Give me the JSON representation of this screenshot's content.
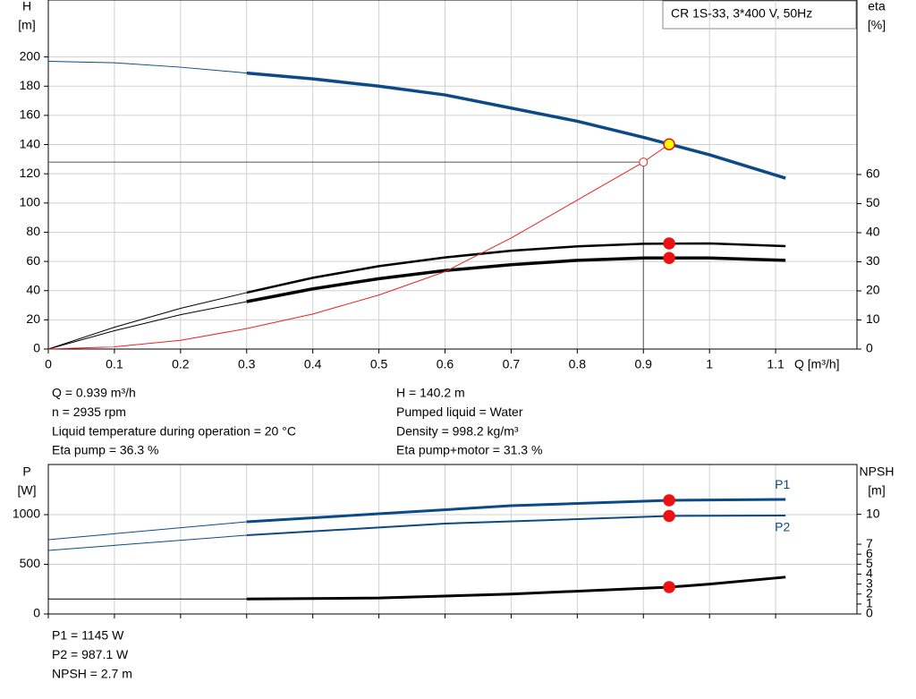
{
  "chart_data": [
    {
      "type": "line",
      "title": "CR 1S-33, 3*400 V, 50Hz",
      "ylabel": "H",
      "yunit": "[m]",
      "y2label": "eta",
      "y2unit": "[%]",
      "xlabel": "Q [m³/h]",
      "xlim": [
        0,
        1.223
      ],
      "xticks": [
        0,
        0.1,
        0.2,
        0.3,
        0.4,
        0.5,
        0.6,
        0.7,
        0.8,
        0.9,
        1.0,
        1.1
      ],
      "ylim": [
        0,
        239
      ],
      "yticks": [
        0,
        20,
        40,
        60,
        80,
        100,
        120,
        140,
        160,
        180,
        200
      ],
      "y2lim": [
        0,
        120
      ],
      "y2ticks": [
        0,
        10,
        20,
        30,
        40,
        50,
        60
      ],
      "grid": true,
      "series": [
        {
          "color": "#0b4a86",
          "width": 1,
          "x": [
            0,
            0.1,
            0.2,
            0.3
          ],
          "values": [
            197,
            196,
            193,
            189
          ]
        },
        {
          "color": "#0b4a86",
          "width": 3.5,
          "x": [
            0.3,
            0.4,
            0.5,
            0.6,
            0.7,
            0.8,
            0.9,
            1.0,
            1.115
          ],
          "values": [
            189,
            185,
            180,
            174,
            165,
            156,
            145,
            133,
            117
          ]
        },
        {
          "color": "#000000",
          "width": 1,
          "axis": "y2",
          "x": [
            0,
            0.1,
            0.2,
            0.3
          ],
          "values": [
            0,
            7.5,
            14,
            19.4
          ]
        },
        {
          "color": "#000000",
          "width": 2.5,
          "axis": "y2",
          "x": [
            0.3,
            0.4,
            0.5,
            0.6,
            0.7,
            0.8,
            0.9,
            1.0,
            1.115
          ],
          "values": [
            19.4,
            24.5,
            28.5,
            31.5,
            33.8,
            35.3,
            36.2,
            36.3,
            35.4
          ]
        },
        {
          "color": "#000000",
          "width": 1,
          "axis": "y2",
          "x": [
            0,
            0.1,
            0.2,
            0.3
          ],
          "values": [
            0,
            6.3,
            11.8,
            16.3
          ]
        },
        {
          "color": "#000000",
          "width": 3.5,
          "axis": "y2",
          "x": [
            0.3,
            0.4,
            0.5,
            0.6,
            0.7,
            0.8,
            0.9,
            1.0,
            1.115
          ],
          "values": [
            16.3,
            20.7,
            24.2,
            27,
            29,
            30.5,
            31.3,
            31.3,
            30.5
          ]
        },
        {
          "color": "#ee2222",
          "width": 1,
          "x": [
            0,
            0.1,
            0.2,
            0.3,
            0.4,
            0.5,
            0.6,
            0.7,
            0.8,
            0.9,
            0.939
          ],
          "values": [
            0,
            1.5,
            6,
            14,
            24,
            37,
            53,
            76,
            102,
            128,
            140.2
          ]
        }
      ],
      "points": [
        {
          "x": 0.939,
          "y": 140.2,
          "color": "#ffff00"
        },
        {
          "x": 0.939,
          "y": 36.3,
          "axis": "y2",
          "color": "#ee1111"
        },
        {
          "x": 0.939,
          "y": 31.3,
          "axis": "y2",
          "color": "#ee1111"
        }
      ],
      "duty_point": {
        "x": 0.9,
        "y": 128
      }
    },
    {
      "type": "line",
      "ylabel": "P",
      "yunit": "[W]",
      "y2label": "NPSH",
      "y2unit": "[m]",
      "xlim": [
        0,
        1.223
      ],
      "xticks": [
        0,
        0.1,
        0.2,
        0.3,
        0.4,
        0.5,
        0.6,
        0.7,
        0.8,
        0.9,
        1.0,
        1.1
      ],
      "ylim": [
        0,
        1505
      ],
      "yticks": [
        0,
        500,
        1000
      ],
      "y2lim": [
        0,
        15
      ],
      "y2ticks": [
        0,
        1,
        2,
        3,
        4,
        5,
        6,
        7,
        10
      ],
      "grid": true,
      "series": [
        {
          "color": "#0b4a86",
          "width": 1,
          "x": [
            0,
            0.3
          ],
          "values": [
            748,
            928
          ]
        },
        {
          "name": "P1",
          "color": "#0b4a86",
          "width": 3,
          "x": [
            0.3,
            0.5,
            0.7,
            0.94,
            1.115
          ],
          "values": [
            928,
            1009,
            1090,
            1145,
            1153
          ]
        },
        {
          "color": "#0b4a86",
          "width": 1,
          "x": [
            0,
            0.3
          ],
          "values": [
            640,
            793
          ]
        },
        {
          "name": "P2",
          "color": "#0b4a86",
          "width": 2,
          "x": [
            0.3,
            0.6,
            0.94,
            1.115
          ],
          "values": [
            793,
            910,
            987,
            991
          ]
        },
        {
          "color": "#000000",
          "width": 1,
          "axis": "y2",
          "x": [
            0,
            0.3
          ],
          "values": [
            1.5,
            1.5
          ]
        },
        {
          "color": "#000000",
          "width": 3,
          "axis": "y2",
          "x": [
            0.3,
            0.5,
            0.7,
            0.94,
            1.0,
            1.115
          ],
          "values": [
            1.5,
            1.6,
            2.0,
            2.7,
            3.0,
            3.7
          ]
        }
      ],
      "points": [
        {
          "x": 0.939,
          "y": 1145,
          "color": "#ee1111"
        },
        {
          "x": 0.939,
          "y": 987,
          "color": "#ee1111"
        },
        {
          "x": 0.939,
          "y": 2.7,
          "axis": "y2",
          "color": "#ee1111"
        }
      ]
    }
  ],
  "readouts": {
    "left": [
      "Q = 0.939 m³/h",
      "n = 2935 rpm",
      "Liquid temperature during operation = 20 °C",
      "Eta pump = 36.3 %"
    ],
    "right": [
      "H = 140.2 m",
      "Pumped liquid = Water",
      "Density = 998.2 kg/m³",
      "Eta pump+motor = 31.3 %"
    ],
    "bottom": [
      "P1 = 1145 W",
      "P2 = 987.1 W",
      "NPSH = 2.7 m"
    ]
  }
}
